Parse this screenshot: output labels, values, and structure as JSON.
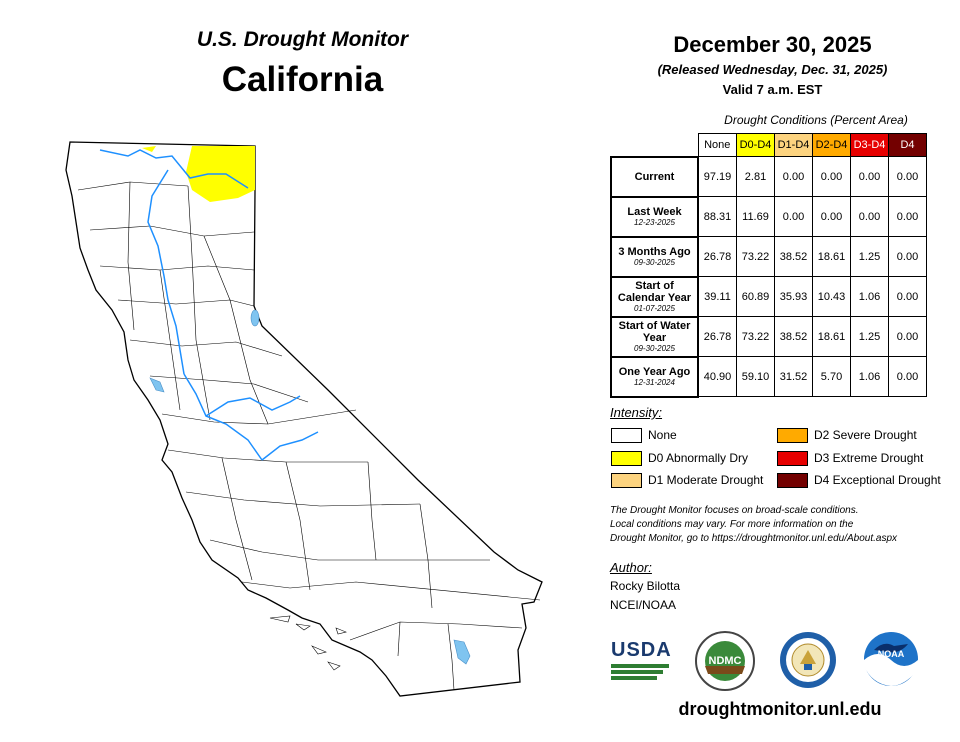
{
  "header": {
    "title": "U.S. Drought Monitor",
    "state": "California"
  },
  "date": {
    "main": "December 30, 2025",
    "released": "(Released Wednesday, Dec. 31, 2025)",
    "valid": "Valid 7 a.m. EST"
  },
  "table": {
    "caption": "Drought Conditions (Percent Area)",
    "columns": [
      {
        "label": "None",
        "color": "#ffffff",
        "text_color": "#000000"
      },
      {
        "label": "D0-D4",
        "color": "#ffff00",
        "text_color": "#000000"
      },
      {
        "label": "D1-D4",
        "color": "#fcd37f",
        "text_color": "#000000"
      },
      {
        "label": "D2-D4",
        "color": "#ffaa00",
        "text_color": "#000000"
      },
      {
        "label": "D3-D4",
        "color": "#e60000",
        "text_color": "#ffffff"
      },
      {
        "label": "D4",
        "color": "#730000",
        "text_color": "#ffffff"
      }
    ],
    "rows": [
      {
        "label": "Current",
        "sub": "",
        "values": [
          "97.19",
          "2.81",
          "0.00",
          "0.00",
          "0.00",
          "0.00"
        ]
      },
      {
        "label": "Last Week",
        "sub": "12-23-2025",
        "values": [
          "88.31",
          "11.69",
          "0.00",
          "0.00",
          "0.00",
          "0.00"
        ]
      },
      {
        "label": "3 Months Ago",
        "sub": "09-30-2025",
        "values": [
          "26.78",
          "73.22",
          "38.52",
          "18.61",
          "1.25",
          "0.00"
        ]
      },
      {
        "label": "Start of Calendar Year",
        "sub": "01-07-2025",
        "values": [
          "39.11",
          "60.89",
          "35.93",
          "10.43",
          "1.06",
          "0.00"
        ]
      },
      {
        "label": "Start of Water Year",
        "sub": "09-30-2025",
        "values": [
          "26.78",
          "73.22",
          "38.52",
          "18.61",
          "1.25",
          "0.00"
        ]
      },
      {
        "label": "One Year Ago",
        "sub": "12-31-2024",
        "values": [
          "40.90",
          "59.10",
          "31.52",
          "5.70",
          "1.06",
          "0.00"
        ]
      }
    ]
  },
  "legend": {
    "title": "Intensity:",
    "items": [
      {
        "label": "None",
        "color": "#ffffff"
      },
      {
        "label": "D0 Abnormally Dry",
        "color": "#ffff00"
      },
      {
        "label": "D1 Moderate Drought",
        "color": "#fcd37f"
      },
      {
        "label": "D2 Severe Drought",
        "color": "#ffaa00"
      },
      {
        "label": "D3 Extreme Drought",
        "color": "#e60000"
      },
      {
        "label": "D4 Exceptional Drought",
        "color": "#730000"
      }
    ]
  },
  "note": {
    "line1": "The Drought Monitor focuses on broad-scale conditions.",
    "line2": "Local conditions may vary. For more information on the",
    "line3": "Drought Monitor, go to https://droughtmonitor.unl.edu/About.aspx"
  },
  "author": {
    "title": "Author:",
    "name": "Rocky Bilotta",
    "org": "NCEI/NOAA"
  },
  "logos": {
    "usda": "USDA",
    "ndmc": "NDMC",
    "noaa": "NOAA"
  },
  "footer": {
    "url": "droughtmonitor.unl.edu"
  },
  "colors": {
    "water": "#7fc4f0",
    "river": "#1e90ff",
    "d0": "#ffff00"
  }
}
